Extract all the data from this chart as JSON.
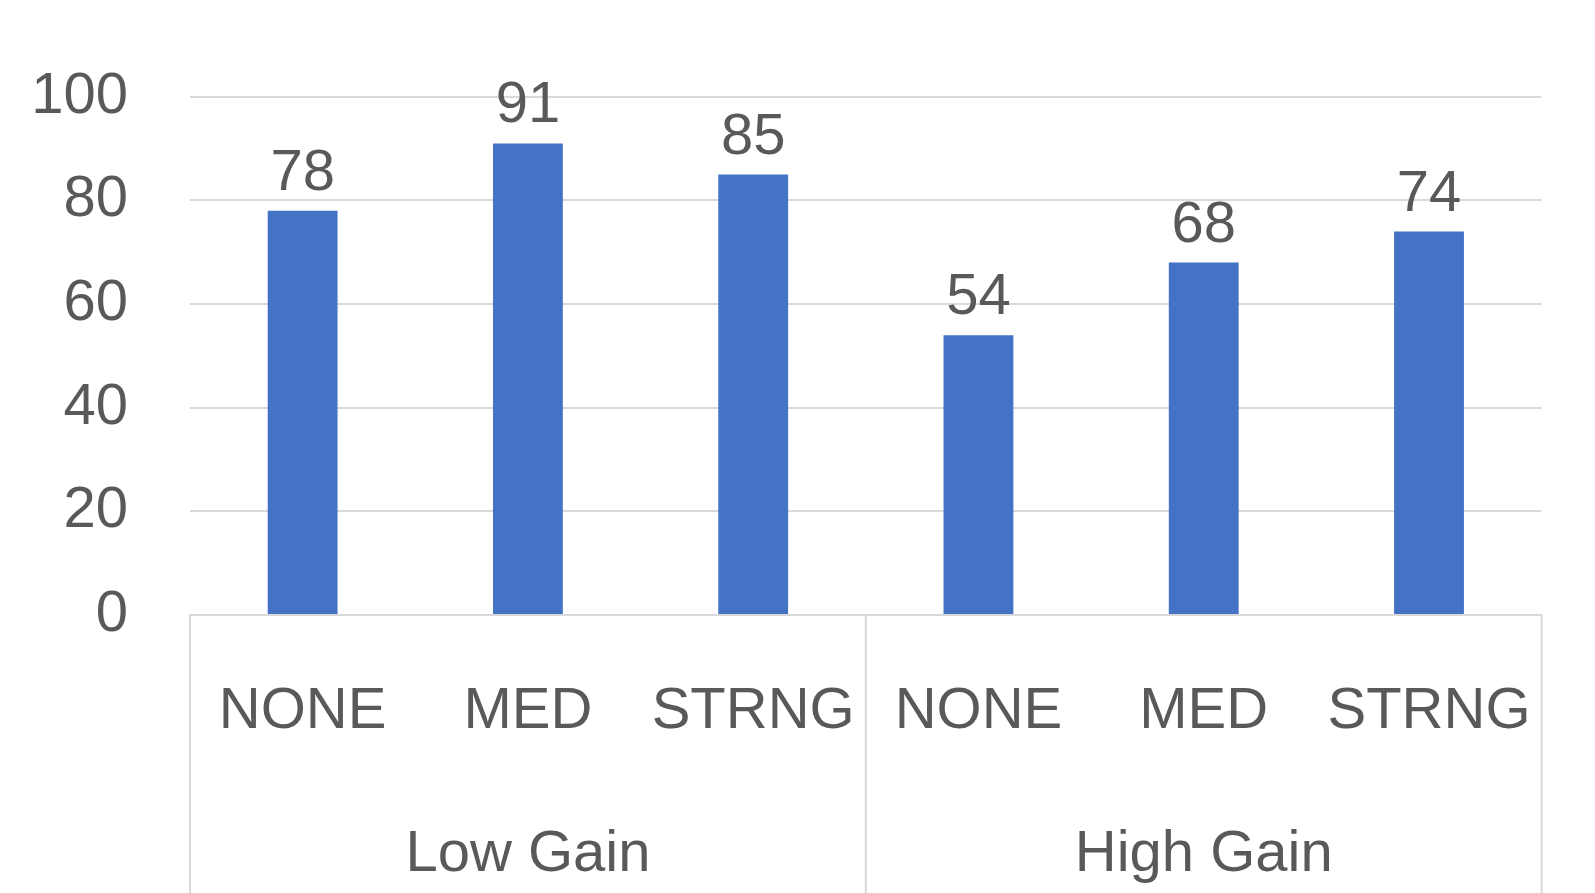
{
  "chart_data": {
    "type": "bar",
    "categories": [
      "NONE",
      "MED",
      "STRNG",
      "NONE",
      "MED",
      "STRNG"
    ],
    "values": [
      78,
      91,
      85,
      54,
      68,
      74
    ],
    "color": "#4472c4",
    "ylim": [
      0,
      100
    ],
    "yticks": [
      0,
      20,
      40,
      60,
      80,
      100
    ],
    "grid": "y",
    "legend": false,
    "data_labels": true,
    "annotations": [
      "Low Gain",
      "High Gain"
    ]
  }
}
